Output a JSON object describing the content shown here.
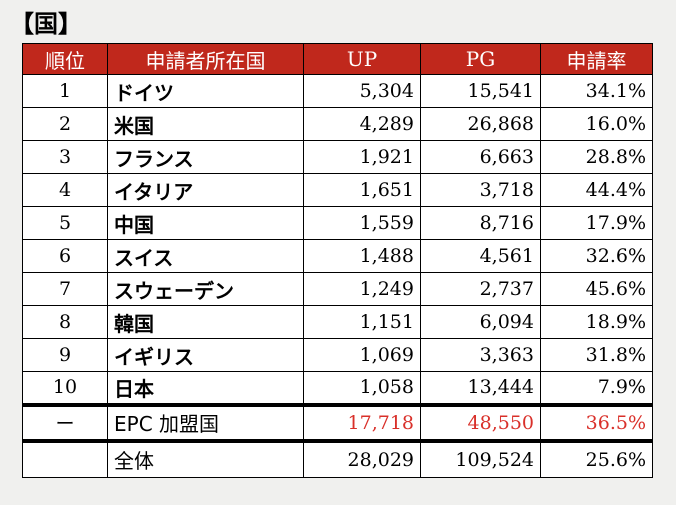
{
  "title": "【国】",
  "headers": {
    "rank": "順位",
    "country": "申請者所在国",
    "up": "UP",
    "pg": "PG",
    "rate": "申請率"
  },
  "rows": [
    {
      "rank": "1",
      "country": "ドイツ",
      "up": "5,304",
      "pg": "15,541",
      "rate": "34.1%"
    },
    {
      "rank": "2",
      "country": "米国",
      "up": "4,289",
      "pg": "26,868",
      "rate": "16.0%"
    },
    {
      "rank": "3",
      "country": "フランス",
      "up": "1,921",
      "pg": "6,663",
      "rate": "28.8%"
    },
    {
      "rank": "4",
      "country": "イタリア",
      "up": "1,651",
      "pg": "3,718",
      "rate": "44.4%"
    },
    {
      "rank": "5",
      "country": "中国",
      "up": "1,559",
      "pg": "8,716",
      "rate": "17.9%"
    },
    {
      "rank": "6",
      "country": "スイス",
      "up": "1,488",
      "pg": "4,561",
      "rate": "32.6%"
    },
    {
      "rank": "7",
      "country": "スウェーデン",
      "up": "1,249",
      "pg": "2,737",
      "rate": "45.6%"
    },
    {
      "rank": "8",
      "country": "韓国",
      "up": "1,151",
      "pg": "6,094",
      "rate": "18.9%"
    },
    {
      "rank": "9",
      "country": "イギリス",
      "up": "1,069",
      "pg": "3,363",
      "rate": "31.8%"
    },
    {
      "rank": "10",
      "country": "日本",
      "up": "1,058",
      "pg": "13,444",
      "rate": "7.9%"
    }
  ],
  "epc": {
    "rank": "ー",
    "country": "EPC 加盟国",
    "up": "17,718",
    "pg": "48,550",
    "rate": "36.5%"
  },
  "total": {
    "rank": "",
    "country": "全体",
    "up": "28,029",
    "pg": "109,524",
    "rate": "25.6%"
  },
  "colors": {
    "header_bg": "#c0281c",
    "epc_value": "#d9302a"
  }
}
